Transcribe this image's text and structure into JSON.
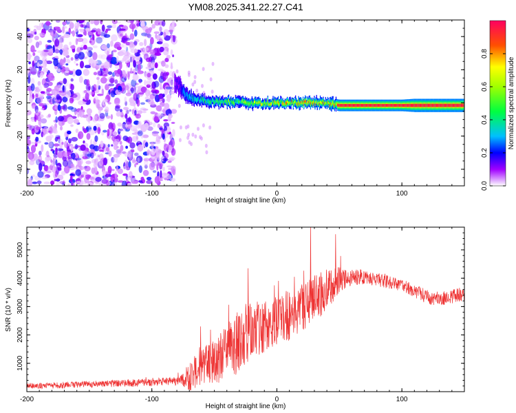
{
  "chart_data": [
    {
      "type": "heatmap",
      "title": "YM08.2025.341.22.27.C41",
      "xlabel": "Height of straight line (km)",
      "ylabel": "Frequency (Hz)",
      "xlim": [
        -200,
        150
      ],
      "ylim": [
        -50,
        50
      ],
      "x_ticks": [
        -200,
        -100,
        0,
        100
      ],
      "y_ticks": [
        -40,
        -20,
        0,
        20,
        40
      ],
      "x_tick_labels": [
        "-200",
        "-100",
        "0",
        "100"
      ],
      "y_tick_labels": [
        "-40",
        "-20",
        "0",
        "20",
        "40"
      ],
      "colorbar": {
        "label": "Normalized spectral amplitude",
        "range": [
          0,
          1
        ],
        "ticks": [
          0,
          0.2,
          0.4,
          0.6,
          0.8
        ],
        "tick_labels": [
          "0.0",
          "0.2",
          "0.4",
          "0.6",
          "0.8"
        ],
        "stops": [
          {
            "v": 0.0,
            "color": "#ffffff"
          },
          {
            "v": 0.1,
            "color": "#a000ff"
          },
          {
            "v": 0.2,
            "color": "#0000ff"
          },
          {
            "v": 0.3,
            "color": "#00c0ff"
          },
          {
            "v": 0.45,
            "color": "#00ff40"
          },
          {
            "v": 0.6,
            "color": "#a0ff00"
          },
          {
            "v": 0.72,
            "color": "#ffff00"
          },
          {
            "v": 0.85,
            "color": "#ff5000"
          },
          {
            "v": 1.0,
            "color": "#ff0060"
          }
        ]
      },
      "noise_region": {
        "x_from": -200,
        "x_to": -82,
        "f_from": -50,
        "f_to": 50
      },
      "ridge": {
        "x": [
          -82,
          -78,
          -75,
          -72,
          -68,
          -65,
          -60,
          -55,
          -50,
          -45,
          -40,
          -35,
          -30,
          -25,
          -20,
          -15,
          -10,
          -5,
          0,
          5,
          10,
          15,
          20,
          25,
          30,
          35,
          40,
          45,
          50,
          60,
          70,
          80,
          90,
          100,
          110,
          120,
          130,
          140,
          150
        ],
        "freq": [
          12,
          10,
          7,
          4,
          3,
          2,
          1.5,
          1,
          1,
          0.5,
          0.5,
          0.5,
          0.5,
          0,
          0,
          0,
          0,
          0,
          0,
          0,
          0,
          0,
          0,
          0,
          0,
          0,
          0,
          -1,
          -1.5,
          -1.5,
          -1.5,
          -1.5,
          -1.5,
          -1.5,
          -1.5,
          -1.5,
          -1.5,
          -1.5,
          -1.5
        ],
        "amplitude": [
          0.1,
          0.2,
          0.3,
          0.35,
          0.4,
          0.4,
          0.45,
          0.5,
          0.5,
          0.55,
          0.6,
          0.6,
          0.65,
          0.7,
          0.7,
          0.75,
          0.75,
          0.8,
          0.8,
          0.85,
          0.85,
          0.85,
          0.85,
          0.9,
          0.9,
          0.9,
          0.9,
          0.9,
          0.95,
          0.95,
          0.95,
          0.95,
          0.95,
          0.95,
          0.95,
          0.95,
          0.95,
          0.95,
          0.95
        ],
        "half_width_hz": [
          5,
          5,
          4.5,
          4,
          4,
          3.5,
          3.5,
          3,
          3,
          3,
          3,
          3,
          3,
          3,
          3,
          3,
          3,
          3,
          3,
          3,
          3,
          3,
          3,
          3,
          3,
          3,
          3,
          3.5,
          3.5,
          3.5,
          3.5,
          3.5,
          3.5,
          3.5,
          4,
          4,
          4,
          4,
          4
        ]
      }
    },
    {
      "type": "line",
      "title": "",
      "xlabel": "Height of straight line (km)",
      "ylabel": "SNR (10 * v/v)",
      "xlim": [
        -200,
        150
      ],
      "ylim": [
        0,
        5800
      ],
      "x_ticks": [
        -200,
        -100,
        0,
        100
      ],
      "y_ticks": [
        1000,
        2000,
        3000,
        4000,
        5000
      ],
      "x_tick_labels": [
        "-200",
        "-100",
        "0",
        "100"
      ],
      "y_tick_labels": [
        "1000",
        "2000",
        "3000",
        "4000",
        "5000"
      ],
      "color": "#ee3333",
      "series": [
        {
          "name": "SNR",
          "baseline_x": [
            -200,
            -180,
            -160,
            -140,
            -120,
            -100,
            -90,
            -80,
            -75,
            -70,
            -65,
            -60,
            -55,
            -50,
            -45,
            -40,
            -35,
            -30,
            -25,
            -20,
            -15,
            -10,
            -5,
            0,
            5,
            10,
            15,
            20,
            25,
            30,
            35,
            40,
            45,
            50,
            55,
            60,
            65,
            70,
            75,
            80,
            85,
            90,
            95,
            100,
            105,
            110,
            115,
            120,
            125,
            130,
            135,
            140,
            145,
            150
          ],
          "baseline_y": [
            200,
            220,
            250,
            270,
            300,
            330,
            350,
            370,
            400,
            500,
            700,
            900,
            1000,
            1100,
            1200,
            1400,
            1600,
            1800,
            2000,
            2100,
            2200,
            2300,
            2400,
            2500,
            2600,
            2700,
            2800,
            3000,
            3200,
            3300,
            3450,
            3600,
            3750,
            3900,
            4000,
            4050,
            4050,
            4050,
            4000,
            3950,
            3900,
            3850,
            3800,
            3750,
            3650,
            3550,
            3450,
            3350,
            3300,
            3300,
            3300,
            3350,
            3400,
            3450
          ],
          "noise_amplitude": [
            100,
            110,
            120,
            120,
            130,
            140,
            150,
            160,
            250,
            700,
            600,
            600,
            700,
            800,
            900,
            1000,
            1100,
            1100,
            1100,
            1000,
            1000,
            900,
            900,
            900,
            900,
            900,
            900,
            900,
            900,
            900,
            800,
            700,
            600,
            500,
            350,
            300,
            280,
            260,
            250,
            250,
            240,
            230,
            220,
            220,
            220,
            230,
            240,
            250,
            250,
            250,
            250,
            250,
            250,
            250
          ],
          "peaks": [
            {
              "x": -61,
              "y": 2300
            },
            {
              "x": -23,
              "y": 4350
            },
            {
              "x": -2,
              "y": 3750
            },
            {
              "x": 14,
              "y": 4050
            },
            {
              "x": 27,
              "y": 5850
            },
            {
              "x": 47,
              "y": 5550
            }
          ]
        }
      ]
    }
  ]
}
